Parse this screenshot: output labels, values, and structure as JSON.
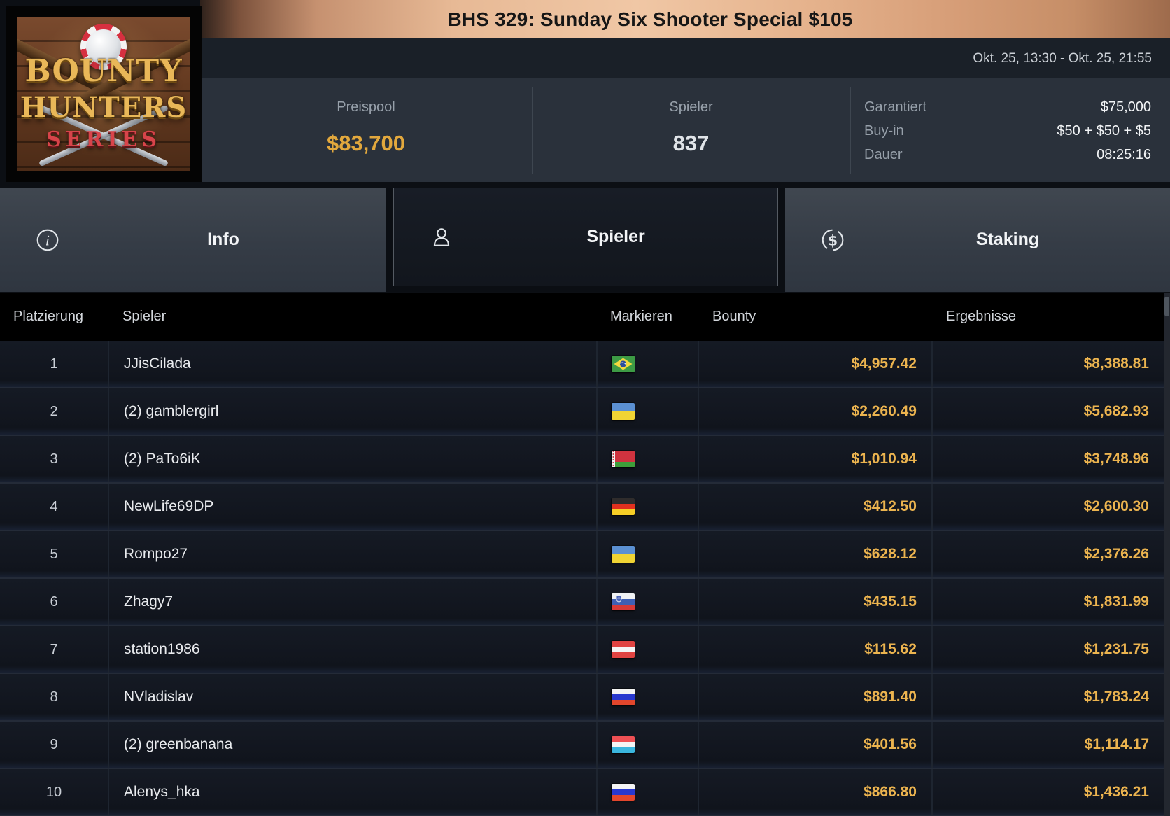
{
  "header": {
    "title": "BHS 329: Sunday Six Shooter Special $105",
    "date_range": "Okt. 25, 13:30 - Okt. 25, 21:55"
  },
  "logo": {
    "line1": "BOUNTY",
    "line2": "HUNTERS",
    "line3": "SERIES"
  },
  "stats": {
    "prizepool": {
      "label": "Preispool",
      "value": "$83,700"
    },
    "players": {
      "label": "Spieler",
      "value": "837"
    },
    "details": [
      {
        "label": "Garantiert",
        "value": "$75,000"
      },
      {
        "label": "Buy-in",
        "value": "$50 + $50 + $5"
      },
      {
        "label": "Dauer",
        "value": "08:25:16"
      }
    ]
  },
  "tabs": [
    {
      "label": "Info",
      "icon": "info-icon",
      "active": false
    },
    {
      "label": "Spieler",
      "icon": "person-icon",
      "active": true
    },
    {
      "label": "Staking",
      "icon": "dollar-circle-icon",
      "active": false
    }
  ],
  "table": {
    "columns": [
      "Platzierung",
      "Spieler",
      "Markieren",
      "Bounty",
      "Ergebnisse"
    ],
    "rows": [
      {
        "rank": "1",
        "player": "JJisCilada",
        "country": "br",
        "bounty": "$4,957.42",
        "result": "$8,388.81"
      },
      {
        "rank": "2",
        "player": "(2) gamblergirl",
        "country": "ua",
        "bounty": "$2,260.49",
        "result": "$5,682.93"
      },
      {
        "rank": "3",
        "player": "(2) PaTo6iK",
        "country": "by",
        "bounty": "$1,010.94",
        "result": "$3,748.96"
      },
      {
        "rank": "4",
        "player": "NewLife69DP",
        "country": "de",
        "bounty": "$412.50",
        "result": "$2,600.30"
      },
      {
        "rank": "5",
        "player": "Rompo27",
        "country": "ua",
        "bounty": "$628.12",
        "result": "$2,376.26"
      },
      {
        "rank": "6",
        "player": "Zhagy7",
        "country": "si",
        "bounty": "$435.15",
        "result": "$1,831.99"
      },
      {
        "rank": "7",
        "player": "station1986",
        "country": "at",
        "bounty": "$115.62",
        "result": "$1,231.75"
      },
      {
        "rank": "8",
        "player": "NVladislav",
        "country": "ru",
        "bounty": "$891.40",
        "result": "$1,783.24"
      },
      {
        "rank": "9",
        "player": "(2) greenbanana",
        "country": "lu",
        "bounty": "$401.56",
        "result": "$1,114.17"
      },
      {
        "rank": "10",
        "player": "Alenys_hka",
        "country": "ru",
        "bounty": "$866.80",
        "result": "$1,436.21"
      }
    ]
  },
  "colors": {
    "accent_copper": "#e7b995",
    "gold_primary": "#e2a83d",
    "gold_rows": "#ecb44f",
    "panel_bg": "#2a313b",
    "row_bg": "#12161f"
  }
}
